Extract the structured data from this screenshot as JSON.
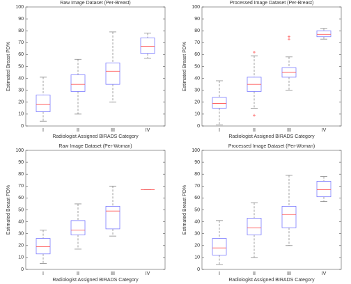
{
  "chart_data": [
    {
      "type": "box",
      "title": "Raw Image Dataset (Per-Breast)",
      "xlabel": "Radiologist Assigned BIRADS Category",
      "ylabel": "Estimated Breast PD%",
      "categories": [
        "I",
        "II",
        "III",
        "IV"
      ],
      "box_color": "#7a7aff",
      "median_color": "#ff5a5a",
      "whisker_color": "#777777",
      "outlier_color": "#ff5a5a",
      "boxes": [
        {
          "low": 4,
          "q1": 12,
          "median": 18,
          "q3": 26,
          "high": 41
        },
        {
          "low": 10,
          "q1": 29,
          "median": 35,
          "q3": 43,
          "high": 56
        },
        {
          "low": 20,
          "q1": 35,
          "median": 46,
          "q3": 53,
          "high": 79
        },
        {
          "low": 57,
          "q1": 61,
          "median": 67,
          "q3": 74,
          "high": 78
        }
      ],
      "ylim": [
        0,
        100
      ],
      "yticks": [
        0,
        10,
        20,
        30,
        40,
        50,
        60,
        70,
        80,
        90,
        100
      ]
    },
    {
      "type": "box",
      "title": "Processed Image Dataset (Per-Breast)",
      "xlabel": "Radiologist Assigned BIRADS Category",
      "ylabel": "Estimated Breast PD%",
      "categories": [
        "I",
        "II",
        "III",
        "IV"
      ],
      "box_color": "#7a7aff",
      "median_color": "#ff5a5a",
      "whisker_color": "#777777",
      "outlier_color": "#ff5a5a",
      "boxes": [
        {
          "low": 1,
          "q1": 15,
          "median": 19,
          "q3": 24,
          "high": 38
        },
        {
          "low": 15,
          "q1": 29,
          "median": 35,
          "q3": 41,
          "high": 59,
          "outliers": [
            62,
            9
          ]
        },
        {
          "low": 30,
          "q1": 41,
          "median": 45,
          "q3": 49,
          "high": 58,
          "outliers": [
            75,
            73
          ]
        },
        {
          "low": 73,
          "q1": 75,
          "median": 77,
          "q3": 80,
          "high": 82
        }
      ],
      "ylim": [
        0,
        100
      ],
      "yticks": [
        0,
        10,
        20,
        30,
        40,
        50,
        60,
        70,
        80,
        90,
        100
      ]
    },
    {
      "type": "box",
      "title": "Raw Image Dataset (Per-Woman)",
      "xlabel": "Radiologist Assigned BIRADS Category",
      "ylabel": "Estimated Breast PD%",
      "categories": [
        "I",
        "II",
        "III",
        "IV"
      ],
      "box_color": "#7a7aff",
      "median_color": "#ff5a5a",
      "whisker_color": "#777777",
      "outlier_color": "#ff5a5a",
      "boxes": [
        {
          "low": 5,
          "q1": 13,
          "median": 19,
          "q3": 26,
          "high": 33
        },
        {
          "low": 17,
          "q1": 29,
          "median": 33,
          "q3": 41,
          "high": 55
        },
        {
          "low": 28,
          "q1": 34,
          "median": 49,
          "q3": 53,
          "high": 70
        },
        {
          "low": 67,
          "q1": 67,
          "median": 67,
          "q3": 67,
          "high": 67
        }
      ],
      "ylim": [
        0,
        100
      ],
      "yticks": [
        0,
        10,
        20,
        30,
        40,
        50,
        60,
        70,
        80,
        90,
        100
      ]
    },
    {
      "type": "box",
      "title": "Processed Image Dataset (Per-Woman)",
      "xlabel": "Radiologist Assigned BIRADS Category",
      "ylabel": "Estimated Breast PD%",
      "categories": [
        "I",
        "II",
        "III",
        "IV"
      ],
      "box_color": "#7a7aff",
      "median_color": "#ff5a5a",
      "whisker_color": "#777777",
      "outlier_color": "#ff5a5a",
      "boxes": [
        {
          "low": 4,
          "q1": 12,
          "median": 18,
          "q3": 26,
          "high": 41
        },
        {
          "low": 10,
          "q1": 29,
          "median": 35,
          "q3": 43,
          "high": 56
        },
        {
          "low": 20,
          "q1": 35,
          "median": 46,
          "q3": 53,
          "high": 79
        },
        {
          "low": 57,
          "q1": 61,
          "median": 67,
          "q3": 74,
          "high": 78
        }
      ],
      "ylim": [
        0,
        100
      ],
      "yticks": [
        0,
        10,
        20,
        30,
        40,
        50,
        60,
        70,
        80,
        90,
        100
      ]
    }
  ]
}
